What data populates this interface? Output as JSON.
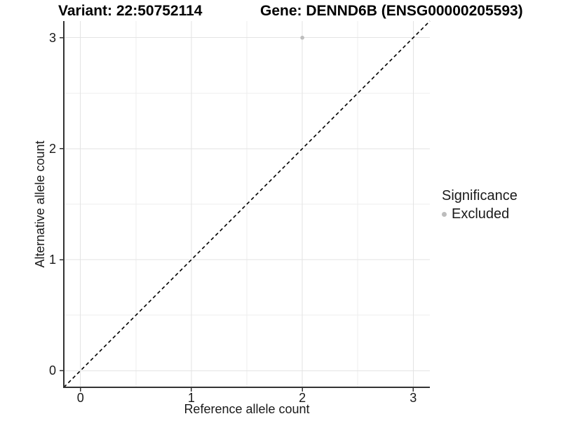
{
  "chart_data": {
    "type": "scatter",
    "titles": {
      "variant": "Variant: 22:50752114",
      "gene": "Gene: DENND6B (ENSG00000205593)"
    },
    "xlabel": "Reference allele count",
    "ylabel": "Alternative allele count",
    "xlim": [
      -0.15,
      3.15
    ],
    "ylim": [
      -0.15,
      3.15
    ],
    "x_ticks": [
      0,
      1,
      2,
      3
    ],
    "y_ticks": [
      0,
      1,
      2,
      3
    ],
    "minor_gridlines": [
      0.5,
      1.5,
      2.5
    ],
    "grid": "on",
    "legend_position": "right",
    "legend": {
      "title": "Significance",
      "items": [
        {
          "label": "Excluded",
          "color": "#bdbdbd"
        }
      ]
    },
    "series": [
      {
        "name": "Excluded",
        "color": "#bdbdbd",
        "point_radius": 2.8,
        "points": [
          {
            "x": 2,
            "y": 3
          }
        ]
      }
    ],
    "reference_line": {
      "type": "identity",
      "style": "dashed",
      "color": "#000000",
      "from": [
        -0.15,
        -0.15
      ],
      "to": [
        3.15,
        3.15
      ]
    },
    "colors": {
      "background": "#ffffff",
      "grid_major": "#e3e3e3",
      "grid_minor": "#eeeeee",
      "axis_line": "#333333",
      "tick_mark": "#333333",
      "text": "#1a1a1a"
    }
  }
}
